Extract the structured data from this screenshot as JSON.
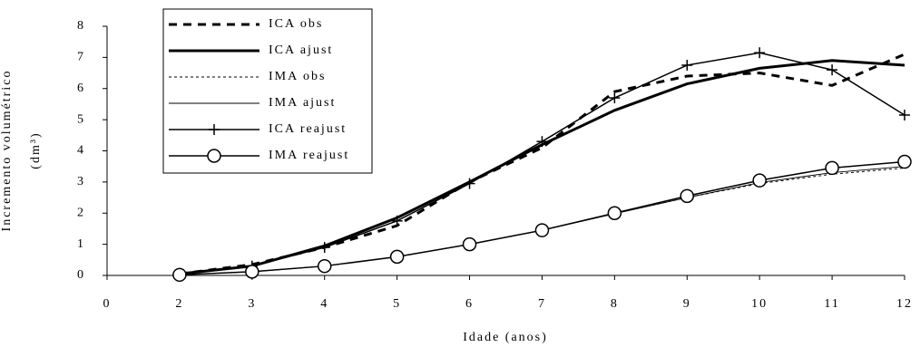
{
  "chart_data": {
    "type": "line",
    "y_label": [
      "Incremento volumétrico",
      "(dm³)"
    ],
    "x_label": "Idade (anos)",
    "categories": [
      "0",
      "2",
      "3",
      "4",
      "5",
      "6",
      "7",
      "8",
      "9",
      "10",
      "11",
      "12"
    ],
    "ylim": [
      0,
      8
    ],
    "yticks": [
      0,
      1,
      2,
      3,
      4,
      5,
      6,
      7,
      8
    ],
    "series": [
      {
        "name": "ICA obs",
        "color": "#000000",
        "values": [
          null,
          0.05,
          0.35,
          0.9,
          1.6,
          3.0,
          4.1,
          5.9,
          6.4,
          6.5,
          6.1,
          7.1
        ]
      },
      {
        "name": "ICA ajust",
        "color": "#000000",
        "values": [
          null,
          0.05,
          0.3,
          0.95,
          1.85,
          3.0,
          4.2,
          5.3,
          6.15,
          6.65,
          6.9,
          6.75
        ]
      },
      {
        "name": "IMA obs",
        "color": "#000000",
        "values": [
          null,
          0.02,
          0.12,
          0.3,
          0.6,
          1.0,
          1.45,
          2.0,
          2.5,
          2.95,
          3.25,
          3.45
        ]
      },
      {
        "name": "IMA ajust",
        "color": "#000000",
        "values": [
          null,
          0.02,
          0.12,
          0.3,
          0.6,
          1.0,
          1.45,
          1.98,
          2.5,
          2.98,
          3.3,
          3.5
        ]
      },
      {
        "name": "ICA reajust",
        "color": "#000000",
        "marker": "plus",
        "values": [
          null,
          0.05,
          0.3,
          0.9,
          1.75,
          2.95,
          4.3,
          5.7,
          6.75,
          7.15,
          6.6,
          5.15
        ]
      },
      {
        "name": "IMA reajust",
        "color": "#000000",
        "marker": "circle",
        "values": [
          null,
          0.02,
          0.12,
          0.3,
          0.6,
          1.0,
          1.45,
          2.0,
          2.55,
          3.05,
          3.45,
          3.65
        ]
      }
    ]
  }
}
